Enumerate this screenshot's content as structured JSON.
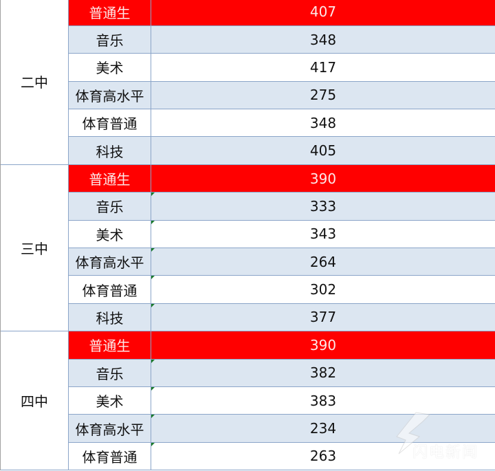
{
  "groups": [
    {
      "name": "二中",
      "rows": [
        {
          "category": "普通生",
          "score": "407",
          "style": "hl"
        },
        {
          "category": "音乐",
          "score": "348",
          "style": "alt"
        },
        {
          "category": "美术",
          "score": "417",
          "style": "white"
        },
        {
          "category": "体育高水平",
          "score": "275",
          "style": "alt"
        },
        {
          "category": "体育普通",
          "score": "348",
          "style": "white"
        },
        {
          "category": "科技",
          "score": "405",
          "style": "alt"
        }
      ]
    },
    {
      "name": "三中",
      "rows": [
        {
          "category": "普通生",
          "score": "390",
          "style": "hl"
        },
        {
          "category": "音乐",
          "score": "333",
          "style": "alt"
        },
        {
          "category": "美术",
          "score": "343",
          "style": "white"
        },
        {
          "category": "体育高水平",
          "score": "264",
          "style": "alt"
        },
        {
          "category": "体育普通",
          "score": "302",
          "style": "white"
        },
        {
          "category": "科技",
          "score": "377",
          "style": "alt"
        }
      ]
    },
    {
      "name": "四中",
      "rows": [
        {
          "category": "普通生",
          "score": "390",
          "style": "hl"
        },
        {
          "category": "音乐",
          "score": "382",
          "style": "alt"
        },
        {
          "category": "美术",
          "score": "383",
          "style": "white"
        },
        {
          "category": "体育高水平",
          "score": "234",
          "style": "alt"
        },
        {
          "category": "体育普通",
          "score": "263",
          "style": "white"
        }
      ]
    }
  ],
  "watermark": "闪电新闻",
  "colors": {
    "highlight": "#ff0000",
    "alt_row": "#dce6f1",
    "border": "#8aa4c8"
  }
}
